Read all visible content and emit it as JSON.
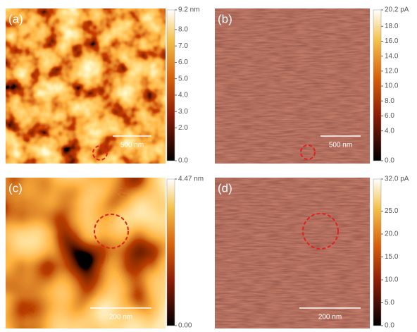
{
  "panels": [
    {
      "label": "(a)",
      "scale_bar": "500 nm",
      "colorbar": {
        "lim": [
          0,
          9.2
        ],
        "ticks": [
          {
            "value": 9.2,
            "label": "9.2 nm"
          },
          {
            "value": 8,
            "label": "8.0"
          },
          {
            "value": 7,
            "label": "7.0"
          },
          {
            "value": 6,
            "label": "6.0"
          },
          {
            "value": 5,
            "label": "5.0"
          },
          {
            "value": 4,
            "label": "4.0"
          },
          {
            "value": 3,
            "label": "3.0"
          },
          {
            "value": 2,
            "label": "2.0"
          },
          {
            "value": 0,
            "label": "0.0"
          }
        ]
      }
    },
    {
      "label": "(b)",
      "scale_bar": "500 nm",
      "colorbar": {
        "lim": [
          0,
          20.2
        ],
        "ticks": [
          {
            "value": 20.2,
            "label": "20.2 pA"
          },
          {
            "value": 18,
            "label": "18.0"
          },
          {
            "value": 16,
            "label": "16.0"
          },
          {
            "value": 14,
            "label": "14.0"
          },
          {
            "value": 12,
            "label": "12.0"
          },
          {
            "value": 10,
            "label": "10.0"
          },
          {
            "value": 8,
            "label": "8.0"
          },
          {
            "value": 6,
            "label": "6.0"
          },
          {
            "value": 4,
            "label": "4.0"
          },
          {
            "value": 0,
            "label": "0.0"
          }
        ]
      }
    },
    {
      "label": "(c)",
      "scale_bar": "200 nm",
      "colorbar": {
        "lim": [
          0,
          4.47
        ],
        "ticks": [
          {
            "value": 4.47,
            "label": "4.47 nm"
          },
          {
            "value": 0,
            "label": "0.00"
          }
        ]
      }
    },
    {
      "label": "(d)",
      "scale_bar": "200 nm",
      "colorbar": {
        "lim": [
          0,
          32
        ],
        "ticks": [
          {
            "value": 32,
            "label": "32.0 pA"
          },
          {
            "value": 25,
            "label": "25.0"
          },
          {
            "value": 20,
            "label": "20.0"
          },
          {
            "value": 15,
            "label": "15.0"
          },
          {
            "value": 10,
            "label": "10.0"
          },
          {
            "value": 5,
            "label": "5.0"
          },
          {
            "value": 0,
            "label": "0.0"
          }
        ]
      }
    }
  ]
}
